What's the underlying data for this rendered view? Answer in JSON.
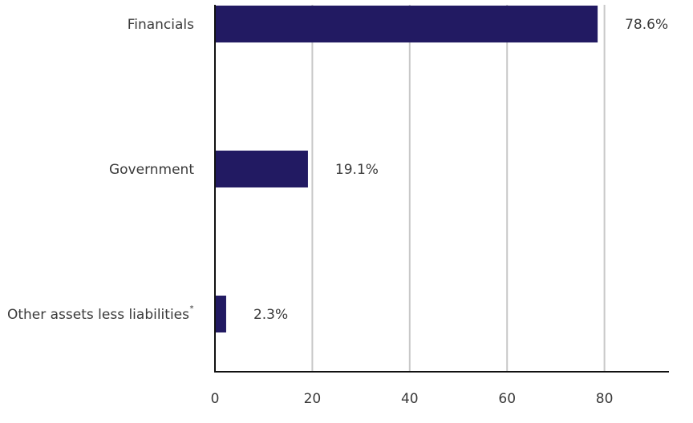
{
  "chart_data": {
    "type": "bar",
    "orientation": "horizontal",
    "categories": [
      "Financials",
      "Government",
      "Other assets less liabilities"
    ],
    "category_footnote_marks": [
      "",
      "",
      "*"
    ],
    "values": [
      78.6,
      19.1,
      2.3
    ],
    "value_labels": [
      "78.6%",
      "19.1%",
      "2.3%"
    ],
    "x_ticks": [
      0,
      20,
      40,
      60,
      80
    ],
    "x_tick_labels": [
      "0",
      "20",
      "40",
      "60",
      "80"
    ],
    "xlim": [
      0,
      93
    ],
    "grid": true,
    "title": "",
    "xlabel": "",
    "ylabel": "",
    "colors": {
      "bar": "#221a62",
      "grid": "#c8c8c8",
      "axis": "#111111",
      "text": "#3a3a3a"
    }
  }
}
